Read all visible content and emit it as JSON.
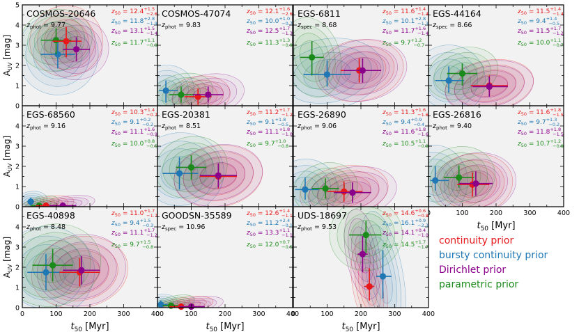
{
  "chart_data": {
    "type": "scatter",
    "xlabel": "t_50 [Myr]",
    "ylabel": "A_UV [mag]",
    "xlim": [
      0,
      400
    ],
    "ylim": [
      0,
      5
    ],
    "xticks": [
      "0",
      "100",
      "200",
      "300",
      "400"
    ],
    "yticks": [
      "0",
      "1",
      "2",
      "3",
      "4",
      "5"
    ],
    "colors": {
      "continuity": "#e8181a",
      "bursty": "#1f77b4",
      "dirichlet": "#8b008b",
      "parametric": "#1a8a1a"
    },
    "legend": [
      {
        "key": "continuity",
        "label": "continuity prior"
      },
      {
        "key": "bursty",
        "label": "bursty continuity prior"
      },
      {
        "key": "dirichlet",
        "label": "Dirichlet prior"
      },
      {
        "key": "parametric",
        "label": "parametric prior"
      }
    ],
    "panels": [
      {
        "name": "COSMOS-20646",
        "zlabel": "z",
        "zsub": "phot",
        "zval": "9.77",
        "z50": [
          {
            "key": "continuity",
            "val": "12.4",
            "up": "+1.5",
            "dn": "−2.6"
          },
          {
            "key": "bursty",
            "val": "11.8",
            "up": "+2.8",
            "dn": "−1.9"
          },
          {
            "key": "dirichlet",
            "val": "13.1",
            "up": "+1.5",
            "dn": "−1.4"
          },
          {
            "key": "parametric",
            "val": "11.7",
            "up": "+1.1",
            "dn": "−0.9"
          }
        ],
        "points": [
          {
            "key": "continuity",
            "x": 130,
            "y": 3.2,
            "xe": [
              40,
              45
            ],
            "ye": [
              0.8,
              0.7
            ]
          },
          {
            "key": "bursty",
            "x": 105,
            "y": 2.55,
            "xe": [
              50,
              50
            ],
            "ye": [
              0.7,
              0.8
            ]
          },
          {
            "key": "dirichlet",
            "x": 160,
            "y": 2.8,
            "xe": [
              40,
              40
            ],
            "ye": [
              0.6,
              0.6
            ]
          },
          {
            "key": "parametric",
            "x": 100,
            "y": 3.25,
            "xe": [
              45,
              45
            ],
            "ye": [
              0.7,
              0.6
            ]
          }
        ]
      },
      {
        "name": "COSMOS-47074",
        "zlabel": "z",
        "zsub": "phot",
        "zval": "9.83",
        "z50": [
          {
            "key": "continuity",
            "val": "12.1",
            "up": "+1.6",
            "dn": "−2.6"
          },
          {
            "key": "bursty",
            "val": "10.0",
            "up": "+1.0",
            "dn": "−0.7"
          },
          {
            "key": "dirichlet",
            "val": "12.5",
            "up": "+1.7",
            "dn": "−1.3"
          },
          {
            "key": "parametric",
            "val": "11.3",
            "up": "+1.3",
            "dn": "−0.9"
          }
        ],
        "points": [
          {
            "key": "continuity",
            "x": 120,
            "y": 0.45,
            "xe": [
              40,
              40
            ],
            "ye": [
              0.4,
              0.4
            ]
          },
          {
            "key": "bursty",
            "x": 25,
            "y": 0.75,
            "xe": [
              20,
              35
            ],
            "ye": [
              0.6,
              0.5
            ]
          },
          {
            "key": "dirichlet",
            "x": 150,
            "y": 0.55,
            "xe": [
              45,
              45
            ],
            "ye": [
              0.4,
              0.4
            ]
          },
          {
            "key": "parametric",
            "x": 70,
            "y": 0.55,
            "xe": [
              35,
              40
            ],
            "ye": [
              0.4,
              0.4
            ]
          }
        ]
      },
      {
        "name": "EGS-6811",
        "zlabel": "z",
        "zsub": "spec",
        "zval": "8.68",
        "z50": [
          {
            "key": "continuity",
            "val": "11.6",
            "up": "+1.4",
            "dn": "−1.4"
          },
          {
            "key": "bursty",
            "val": "10.1",
            "up": "+2.8",
            "dn": "−1.3"
          },
          {
            "key": "dirichlet",
            "val": "11.7",
            "up": "+1.6",
            "dn": "−1.4"
          },
          {
            "key": "parametric",
            "val": "9.7",
            "up": "+1.2",
            "dn": "−0.7"
          }
        ],
        "points": [
          {
            "key": "continuity",
            "x": 195,
            "y": 1.75,
            "xe": [
              55,
              55
            ],
            "ye": [
              0.6,
              0.6
            ]
          },
          {
            "key": "bursty",
            "x": 100,
            "y": 1.55,
            "xe": [
              70,
              70
            ],
            "ye": [
              0.6,
              0.7
            ]
          },
          {
            "key": "dirichlet",
            "x": 205,
            "y": 1.75,
            "xe": [
              55,
              55
            ],
            "ye": [
              0.6,
              0.6
            ]
          },
          {
            "key": "parametric",
            "x": 55,
            "y": 2.4,
            "xe": [
              35,
              35
            ],
            "ye": [
              0.9,
              0.8
            ]
          }
        ]
      },
      {
        "name": "EGS-44164",
        "zlabel": "z",
        "zsub": "spec",
        "zval": "8.66",
        "z50": [
          {
            "key": "continuity",
            "val": "11.5",
            "up": "+1.4",
            "dn": "−1.4"
          },
          {
            "key": "bursty",
            "val": "9.4",
            "up": "+1.4",
            "dn": "−0.5"
          },
          {
            "key": "dirichlet",
            "val": "11.5",
            "up": "+1.7",
            "dn": "−1.2"
          },
          {
            "key": "parametric",
            "val": "10.0",
            "up": "+1.1",
            "dn": "−0.7"
          }
        ],
        "points": [
          {
            "key": "continuity",
            "x": 180,
            "y": 1.0,
            "xe": [
              55,
              55
            ],
            "ye": [
              0.5,
              0.5
            ]
          },
          {
            "key": "bursty",
            "x": 60,
            "y": 1.25,
            "xe": [
              40,
              45
            ],
            "ye": [
              0.6,
              0.7
            ]
          },
          {
            "key": "dirichlet",
            "x": 180,
            "y": 0.95,
            "xe": [
              50,
              55
            ],
            "ye": [
              0.5,
              0.5
            ]
          },
          {
            "key": "parametric",
            "x": 100,
            "y": 1.6,
            "xe": [
              45,
              45
            ],
            "ye": [
              0.6,
              0.5
            ]
          }
        ]
      },
      {
        "name": "EGS-68560",
        "zlabel": "z",
        "zsub": "phot",
        "zval": "9.16",
        "z50": [
          {
            "key": "continuity",
            "val": "10.3",
            "up": "+1.4",
            "dn": "−0.7"
          },
          {
            "key": "bursty",
            "val": "9.1",
            "up": "+0.2",
            "dn": "−0.2"
          },
          {
            "key": "dirichlet",
            "val": "11.1",
            "up": "+1.6",
            "dn": "−0.9"
          },
          {
            "key": "parametric",
            "val": "10.0",
            "up": "+0.8",
            "dn": "−0.5"
          }
        ],
        "points": [
          {
            "key": "continuity",
            "x": 70,
            "y": 0.05,
            "xe": [
              30,
              35
            ],
            "ye": [
              0.05,
              0.1
            ]
          },
          {
            "key": "bursty",
            "x": 25,
            "y": 0.25,
            "xe": [
              10,
              10
            ],
            "ye": [
              0.2,
              0.2
            ]
          },
          {
            "key": "dirichlet",
            "x": 120,
            "y": 0.05,
            "xe": [
              40,
              40
            ],
            "ye": [
              0.05,
              0.1
            ]
          },
          {
            "key": "parametric",
            "x": 50,
            "y": 0.05,
            "xe": [
              25,
              25
            ],
            "ye": [
              0.05,
              0.1
            ]
          }
        ]
      },
      {
        "name": "EGS-20381",
        "zlabel": "z",
        "zsub": "phot",
        "zval": "8.51",
        "z50": [
          {
            "key": "continuity",
            "val": "11.2",
            "up": "+1.7",
            "dn": "−1.2"
          },
          {
            "key": "bursty",
            "val": "9.1",
            "up": "+1.8",
            "dn": "−0.5"
          },
          {
            "key": "dirichlet",
            "val": "11.1",
            "up": "+1.8",
            "dn": "−1.0"
          },
          {
            "key": "parametric",
            "val": "9.7",
            "up": "+1.0",
            "dn": "−0.8"
          }
        ],
        "points": [
          {
            "key": "continuity",
            "x": 180,
            "y": 1.5,
            "xe": [
              55,
              55
            ],
            "ye": [
              0.6,
              0.6
            ]
          },
          {
            "key": "bursty",
            "x": 65,
            "y": 1.65,
            "xe": [
              50,
              55
            ],
            "ye": [
              0.8,
              0.8
            ]
          },
          {
            "key": "dirichlet",
            "x": 180,
            "y": 1.55,
            "xe": [
              55,
              55
            ],
            "ye": [
              0.6,
              0.6
            ]
          },
          {
            "key": "parametric",
            "x": 100,
            "y": 1.95,
            "xe": [
              45,
              45
            ],
            "ye": [
              0.6,
              0.6
            ]
          }
        ]
      },
      {
        "name": "EGS-26890",
        "zlabel": "z",
        "zsub": "phot",
        "zval": "9.06",
        "z50": [
          {
            "key": "continuity",
            "val": "11.3",
            "up": "+1.6",
            "dn": "−1.6"
          },
          {
            "key": "bursty",
            "val": "9.4",
            "up": "+0.9",
            "dn": "−0.4"
          },
          {
            "key": "dirichlet",
            "val": "11.6",
            "up": "+1.8",
            "dn": "−1.6"
          },
          {
            "key": "parametric",
            "val": "10.5",
            "up": "+1.1",
            "dn": "−0.8"
          }
        ],
        "points": [
          {
            "key": "continuity",
            "x": 150,
            "y": 0.75,
            "xe": [
              50,
              55
            ],
            "ye": [
              0.5,
              0.5
            ]
          },
          {
            "key": "bursty",
            "x": 35,
            "y": 0.85,
            "xe": [
              30,
              40
            ],
            "ye": [
              0.5,
              0.6
            ]
          },
          {
            "key": "dirichlet",
            "x": 175,
            "y": 0.7,
            "xe": [
              55,
              55
            ],
            "ye": [
              0.5,
              0.5
            ]
          },
          {
            "key": "parametric",
            "x": 95,
            "y": 0.9,
            "xe": [
              40,
              40
            ],
            "ye": [
              0.5,
              0.5
            ]
          }
        ]
      },
      {
        "name": "EGS-26816",
        "zlabel": "z",
        "zsub": "phot",
        "zval": "9.40",
        "z50": [
          {
            "key": "continuity",
            "val": "11.6",
            "up": "+1.8",
            "dn": "−1.5"
          },
          {
            "key": "bursty",
            "val": "9.7",
            "up": "+1.3",
            "dn": "−0.2"
          },
          {
            "key": "dirichlet",
            "val": "11.8",
            "up": "+1.8",
            "dn": "−1.5"
          },
          {
            "key": "parametric",
            "val": "10.7",
            "up": "+1.2",
            "dn": "−0.8"
          }
        ],
        "points": [
          {
            "key": "continuity",
            "x": 130,
            "y": 1.1,
            "xe": [
              45,
              50
            ],
            "ye": [
              0.6,
              0.6
            ]
          },
          {
            "key": "bursty",
            "x": 20,
            "y": 1.3,
            "xe": [
              15,
              40
            ],
            "ye": [
              0.5,
              0.7
            ]
          },
          {
            "key": "dirichlet",
            "x": 140,
            "y": 1.15,
            "xe": [
              50,
              50
            ],
            "ye": [
              0.6,
              0.6
            ]
          },
          {
            "key": "parametric",
            "x": 90,
            "y": 1.45,
            "xe": [
              45,
              45
            ],
            "ye": [
              0.5,
              0.6
            ]
          }
        ]
      },
      {
        "name": "EGS-40898",
        "zlabel": "z",
        "zsub": "phot",
        "zval": "8.48",
        "z50": [
          {
            "key": "continuity",
            "val": "11.0",
            "up": "+1.7",
            "dn": "−1.7"
          },
          {
            "key": "bursty",
            "val": "9.4",
            "up": "+1.5",
            "dn": "−0.3"
          },
          {
            "key": "dirichlet",
            "val": "11.1",
            "up": "+1.7",
            "dn": "−1.2"
          },
          {
            "key": "parametric",
            "val": "9.7",
            "up": "+1.5",
            "dn": "−0.8"
          }
        ],
        "points": [
          {
            "key": "continuity",
            "x": 170,
            "y": 1.75,
            "xe": [
              60,
              60
            ],
            "ye": [
              0.7,
              0.7
            ]
          },
          {
            "key": "bursty",
            "x": 70,
            "y": 1.75,
            "xe": [
              55,
              60
            ],
            "ye": [
              0.9,
              0.9
            ]
          },
          {
            "key": "dirichlet",
            "x": 175,
            "y": 1.85,
            "xe": [
              55,
              55
            ],
            "ye": [
              0.7,
              0.7
            ]
          },
          {
            "key": "parametric",
            "x": 90,
            "y": 2.1,
            "xe": [
              60,
              60
            ],
            "ye": [
              0.8,
              0.8
            ]
          }
        ]
      },
      {
        "name": "GOODSN-35589",
        "zlabel": "z",
        "zsub": "spec",
        "zval": "10.96",
        "z50": [
          {
            "key": "continuity",
            "val": "12.6",
            "up": "+1.4",
            "dn": "−1.1"
          },
          {
            "key": "bursty",
            "val": "11.2",
            "up": "+2.4",
            "dn": "−0.1"
          },
          {
            "key": "dirichlet",
            "val": "13.3",
            "up": "+1.1",
            "dn": "−1.1"
          },
          {
            "key": "parametric",
            "val": "12.0",
            "up": "+0.7",
            "dn": "−0.5"
          }
        ],
        "points": [
          {
            "key": "continuity",
            "x": 70,
            "y": 0.05,
            "xe": [
              35,
              40
            ],
            "ye": [
              0.05,
              0.15
            ]
          },
          {
            "key": "bursty",
            "x": 10,
            "y": 0.15,
            "xe": [
              8,
              20
            ],
            "ye": [
              0.1,
              0.2
            ]
          },
          {
            "key": "dirichlet",
            "x": 100,
            "y": 0.05,
            "xe": [
              35,
              40
            ],
            "ye": [
              0.05,
              0.1
            ]
          },
          {
            "key": "parametric",
            "x": 40,
            "y": 0.1,
            "xe": [
              25,
              30
            ],
            "ye": [
              0.05,
              0.15
            ]
          }
        ]
      },
      {
        "name": "UDS-18697",
        "zlabel": "z",
        "zsub": "phot",
        "zval": "9.53",
        "z50": [
          {
            "key": "continuity",
            "val": "14.6",
            "up": "+0.6",
            "dn": "−0.8"
          },
          {
            "key": "bursty",
            "val": "16.1",
            "up": "+0.9",
            "dn": "−2.3"
          },
          {
            "key": "dirichlet",
            "val": "14.1",
            "up": "+0.4",
            "dn": "−1.0"
          },
          {
            "key": "parametric",
            "val": "14.5",
            "up": "+1.7",
            "dn": "−1.7"
          }
        ],
        "points": [
          {
            "key": "continuity",
            "x": 225,
            "y": 1.05,
            "xe": [
              15,
              15
            ],
            "ye": [
              0.7,
              0.9
            ]
          },
          {
            "key": "bursty",
            "x": 265,
            "y": 1.55,
            "xe": [
              20,
              25
            ],
            "ye": [
              1.1,
              1.3
            ]
          },
          {
            "key": "dirichlet",
            "x": 205,
            "y": 2.65,
            "xe": [
              15,
              15
            ],
            "ye": [
              0.9,
              0.9
            ]
          },
          {
            "key": "parametric",
            "x": 215,
            "y": 3.6,
            "xe": [
              50,
              45
            ],
            "ye": [
              0.9,
              0.7
            ]
          }
        ]
      }
    ]
  }
}
